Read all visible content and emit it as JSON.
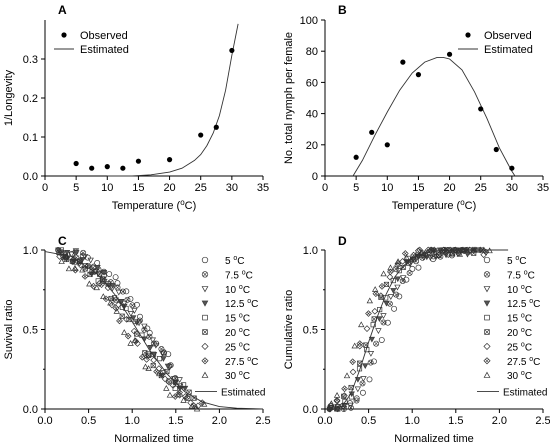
{
  "chart_data": [
    {
      "panel": "A",
      "type": "scatter",
      "xlabel": "Temperature (°C)",
      "ylabel": "1/Longevity",
      "xlim": [
        0,
        35
      ],
      "ylim": [
        0,
        0.4
      ],
      "xticks": [
        "0",
        "5",
        "10",
        "15",
        "20",
        "25",
        "30",
        "35"
      ],
      "yticks": [
        "0.0",
        "0.1",
        "0.2",
        "0.3"
      ],
      "legend": [
        "Observed",
        "Estimated"
      ],
      "legend_position": "top-left",
      "observed": {
        "x": [
          5,
          7.5,
          10,
          12.5,
          15,
          20,
          25,
          27.5,
          30
        ],
        "y": [
          0.032,
          0.02,
          0.024,
          0.02,
          0.038,
          0.042,
          0.105,
          0.125,
          0.322
        ]
      },
      "estimated": {
        "x": [
          10,
          14,
          17,
          20,
          22,
          24,
          25,
          26,
          27,
          28,
          29,
          30,
          30.5,
          31
        ],
        "y": [
          0,
          0,
          0.003,
          0.01,
          0.02,
          0.04,
          0.055,
          0.078,
          0.11,
          0.155,
          0.22,
          0.31,
          0.35,
          0.39
        ]
      }
    },
    {
      "panel": "B",
      "type": "scatter",
      "xlabel": "Temperature (°C)",
      "ylabel": "No. total nymph per female",
      "xlim": [
        0,
        35
      ],
      "ylim": [
        0,
        100
      ],
      "xticks": [
        "0",
        "5",
        "10",
        "15",
        "20",
        "25",
        "30",
        "35"
      ],
      "yticks": [
        "0",
        "20",
        "40",
        "60",
        "80",
        "100"
      ],
      "legend": [
        "Observed",
        "Estimated"
      ],
      "legend_position": "top-right",
      "observed": {
        "x": [
          5,
          7.5,
          10,
          12.5,
          15,
          20,
          25,
          27.5,
          30
        ],
        "y": [
          12,
          28,
          20,
          73,
          65,
          78,
          43,
          17,
          5
        ]
      },
      "estimated": {
        "x": [
          4.5,
          6,
          8,
          10,
          12,
          14,
          16,
          18,
          19,
          20,
          22,
          24,
          26,
          28,
          30,
          30.5
        ],
        "y": [
          0,
          10,
          26,
          41,
          55,
          66,
          73,
          76,
          76,
          75,
          68,
          54,
          37,
          18,
          3,
          0
        ]
      }
    },
    {
      "panel": "C",
      "type": "scatter",
      "xlabel": "Normalized time",
      "ylabel": "Suvival ratio",
      "xlim": [
        0,
        2.5
      ],
      "ylim": [
        0,
        1.0
      ],
      "xticks": [
        "0.0",
        "0.5",
        "1.0",
        "1.5",
        "2.0",
        "2.5"
      ],
      "yticks": [
        "0.0",
        "0.5",
        "1.0"
      ],
      "legend": [
        "5 °C",
        "7.5 °C",
        "10 °C",
        "12.5 °C",
        "15 °C",
        "20 °C",
        "25 °C",
        "27.5 °C",
        "30 °C",
        "Estimated"
      ],
      "legend_position": "right",
      "estimated": {
        "x": [
          0,
          0.3,
          0.6,
          0.8,
          1.0,
          1.2,
          1.4,
          1.6,
          1.8,
          2.0,
          2.2,
          2.5
        ],
        "y": [
          0.99,
          0.96,
          0.85,
          0.72,
          0.55,
          0.37,
          0.22,
          0.11,
          0.045,
          0.015,
          0.005,
          0
        ]
      }
    },
    {
      "panel": "D",
      "type": "scatter",
      "xlabel": "Normalized time",
      "ylabel": "Cumulative ratio",
      "xlim": [
        0,
        2.5
      ],
      "ylim": [
        0,
        1.0
      ],
      "xticks": [
        "0.0",
        "0.5",
        "1.0",
        "1.5",
        "2.0",
        "2.5"
      ],
      "yticks": [
        "0.0",
        "0.5",
        "1.0"
      ],
      "legend": [
        "5 °C",
        "7.5 °C",
        "10 °C",
        "12.5 °C",
        "15 °C",
        "20 °C",
        "25 °C",
        "27.5 °C",
        "30 °C",
        "Estimated"
      ],
      "legend_position": "right",
      "estimated": {
        "x": [
          0.1,
          0.2,
          0.3,
          0.4,
          0.5,
          0.6,
          0.7,
          0.8,
          0.9,
          1.0,
          1.1,
          1.2,
          1.3,
          1.5,
          2.1
        ],
        "y": [
          0,
          0.02,
          0.1,
          0.25,
          0.42,
          0.58,
          0.72,
          0.83,
          0.9,
          0.95,
          0.97,
          0.985,
          0.995,
          1.0,
          1.0
        ]
      }
    }
  ]
}
